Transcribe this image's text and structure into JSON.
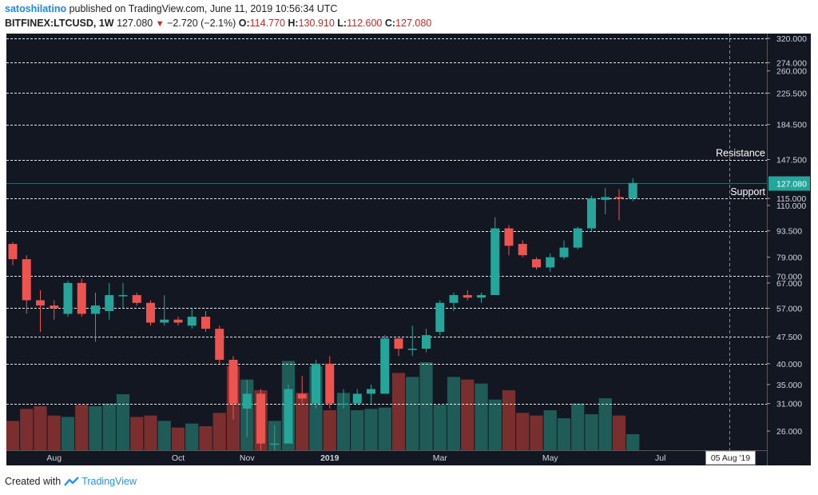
{
  "header": {
    "author": "satoshilatino",
    "published_text": "published on TradingView.com, June 11, 2019 10:56:34 UTC",
    "symbol": "BITFINEX:LTCUSD, 1W",
    "last": "127.080",
    "change_icon": "down-triangle-icon",
    "change": "−2.720 (−2.1%)",
    "o_label": "O:",
    "o_value": "114.770",
    "h_label": "H:",
    "h_value": "130.910",
    "l_label": "L:",
    "l_value": "112.600",
    "c_label": "C:",
    "c_value": "127.080"
  },
  "footer": {
    "created_with": "Created with",
    "brand": "TradingView",
    "brand_icon": "tradingview-logo-icon"
  },
  "colors": {
    "background": "#131722",
    "up": "#26a69a",
    "down": "#ef5350",
    "vol_up": "#1f5c57",
    "vol_down": "#7a2e2e",
    "levels": "#ffffff"
  },
  "chart_data": {
    "type": "candlestick",
    "scale": "log",
    "ylim": [
      23,
      330
    ],
    "x_axis_labels": [
      "Aug",
      "Oct",
      "Nov",
      "2019",
      "Mar",
      "May",
      "Jul"
    ],
    "x_axis_label_week_index": [
      3,
      12,
      17,
      23,
      31,
      39,
      47
    ],
    "crosshair_label": "05 Aug '19",
    "crosshair_week_index": 52,
    "y_tick_labels": [
      "320.000",
      "274.000",
      "260.000",
      "225.500",
      "184.500",
      "147.500",
      "115.000",
      "110.000",
      "93.500",
      "79.000",
      "70.000",
      "67.000",
      "57.000",
      "47.500",
      "40.000",
      "35.000",
      "31.000",
      "26.000"
    ],
    "y_tick_values": [
      320,
      274,
      260,
      225.5,
      184.5,
      147.5,
      115,
      110,
      93.5,
      79,
      70,
      67,
      57,
      47.5,
      40,
      35,
      31,
      26
    ],
    "level_lines": [
      320,
      274,
      225.5,
      184.5,
      147.5,
      115,
      93.5,
      70,
      57,
      47.5,
      40,
      31
    ],
    "last_price_label": "127.080",
    "last_price": 127.08,
    "annotations": [
      {
        "text": "Resistance",
        "price": 147.5
      },
      {
        "text": "Support",
        "price": 115
      }
    ],
    "candles": [
      {
        "o": 86,
        "h": 87,
        "l": 75,
        "c": 78
      },
      {
        "o": 78,
        "h": 80,
        "l": 55,
        "c": 60
      },
      {
        "o": 60,
        "h": 64,
        "l": 49,
        "c": 58
      },
      {
        "o": 58,
        "h": 60,
        "l": 53,
        "c": 57
      },
      {
        "o": 55,
        "h": 68,
        "l": 54,
        "c": 67
      },
      {
        "o": 67,
        "h": 69,
        "l": 54,
        "c": 55
      },
      {
        "o": 55,
        "h": 63,
        "l": 46,
        "c": 58
      },
      {
        "o": 56,
        "h": 67,
        "l": 53,
        "c": 62
      },
      {
        "o": 62,
        "h": 67,
        "l": 57,
        "c": 62
      },
      {
        "o": 62,
        "h": 63,
        "l": 58,
        "c": 59
      },
      {
        "o": 59,
        "h": 60,
        "l": 51,
        "c": 52
      },
      {
        "o": 52,
        "h": 62,
        "l": 51,
        "c": 53
      },
      {
        "o": 53,
        "h": 54,
        "l": 51,
        "c": 52
      },
      {
        "o": 51,
        "h": 57,
        "l": 50,
        "c": 54
      },
      {
        "o": 54,
        "h": 56,
        "l": 49,
        "c": 50
      },
      {
        "o": 50,
        "h": 51,
        "l": 40,
        "c": 41
      },
      {
        "o": 41,
        "h": 42,
        "l": 28,
        "c": 31
      },
      {
        "o": 30,
        "h": 36,
        "l": 25,
        "c": 33
      },
      {
        "o": 33,
        "h": 34,
        "l": 23,
        "c": 24
      },
      {
        "o": 24,
        "h": 27,
        "l": 23,
        "c": 24
      },
      {
        "o": 24,
        "h": 35,
        "l": 24,
        "c": 34
      },
      {
        "o": 33,
        "h": 37,
        "l": 31,
        "c": 32
      },
      {
        "o": 31,
        "h": 41,
        "l": 30,
        "c": 40
      },
      {
        "o": 40,
        "h": 42,
        "l": 30,
        "c": 31
      },
      {
        "o": 31,
        "h": 34,
        "l": 30,
        "c": 31
      },
      {
        "o": 31,
        "h": 34,
        "l": 31,
        "c": 33
      },
      {
        "o": 33,
        "h": 35,
        "l": 31,
        "c": 34
      },
      {
        "o": 33,
        "h": 48,
        "l": 33,
        "c": 47
      },
      {
        "o": 47,
        "h": 47,
        "l": 42,
        "c": 44
      },
      {
        "o": 44,
        "h": 51,
        "l": 42,
        "c": 44
      },
      {
        "o": 44,
        "h": 50,
        "l": 43,
        "c": 48
      },
      {
        "o": 49,
        "h": 60,
        "l": 48,
        "c": 59
      },
      {
        "o": 59,
        "h": 63,
        "l": 56,
        "c": 62
      },
      {
        "o": 62,
        "h": 64,
        "l": 60,
        "c": 61
      },
      {
        "o": 61,
        "h": 63,
        "l": 59,
        "c": 62
      },
      {
        "o": 62,
        "h": 102,
        "l": 62,
        "c": 95
      },
      {
        "o": 95,
        "h": 97,
        "l": 80,
        "c": 85
      },
      {
        "o": 86,
        "h": 88,
        "l": 79,
        "c": 80
      },
      {
        "o": 78,
        "h": 79,
        "l": 73,
        "c": 74
      },
      {
        "o": 74,
        "h": 81,
        "l": 72,
        "c": 79
      },
      {
        "o": 79,
        "h": 88,
        "l": 78,
        "c": 84
      },
      {
        "o": 84,
        "h": 96,
        "l": 83,
        "c": 95
      },
      {
        "o": 95,
        "h": 117,
        "l": 93,
        "c": 115
      },
      {
        "o": 114,
        "h": 123,
        "l": 104,
        "c": 116
      },
      {
        "o": 116,
        "h": 122,
        "l": 100,
        "c": 115
      },
      {
        "o": 115,
        "h": 131,
        "l": 113,
        "c": 127
      }
    ],
    "volumes": [
      22,
      31,
      33,
      26,
      25,
      34,
      33,
      35,
      42,
      25,
      26,
      22,
      17,
      20,
      18,
      28,
      63,
      53,
      45,
      22,
      67,
      43,
      63,
      30,
      43,
      30,
      31,
      32,
      58,
      55,
      66,
      34,
      55,
      53,
      50,
      38,
      45,
      28,
      26,
      30,
      24,
      35,
      27,
      39,
      26,
      12
    ],
    "volume_max": 90
  }
}
